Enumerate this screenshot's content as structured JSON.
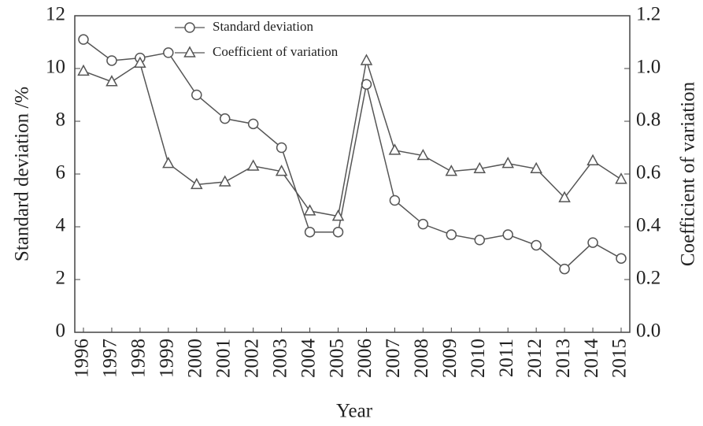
{
  "chart_data": {
    "type": "line",
    "categories": [
      "1996",
      "1997",
      "1998",
      "1999",
      "2000",
      "2001",
      "2002",
      "2003",
      "2004",
      "2005",
      "2006",
      "2007",
      "2008",
      "2009",
      "2010",
      "2011",
      "2012",
      "2013",
      "2014",
      "2015"
    ],
    "series": [
      {
        "name": "Standard deviation",
        "color": "#555555",
        "marker": "circle",
        "axis": "y",
        "values": [
          11.1,
          10.3,
          10.4,
          10.6,
          9.0,
          8.1,
          7.9,
          7.0,
          3.8,
          3.8,
          9.4,
          5.0,
          4.1,
          3.7,
          3.5,
          3.7,
          3.3,
          2.4,
          3.4,
          2.8
        ]
      },
      {
        "name": "Coefficient of variation",
        "color": "#555555",
        "marker": "triangle",
        "axis": "y2",
        "values": [
          0.99,
          0.95,
          1.02,
          0.64,
          0.56,
          0.57,
          0.63,
          0.61,
          0.46,
          0.44,
          1.03,
          0.69,
          0.67,
          0.61,
          0.62,
          0.64,
          0.62,
          0.51,
          0.65,
          0.58
        ]
      }
    ],
    "xlabel": "Year",
    "ylabel": "Standard deviation /%",
    "y2label": "Coefficient of variation",
    "ylim": [
      0,
      12
    ],
    "yticks": [
      0,
      2,
      4,
      6,
      8,
      10,
      12
    ],
    "y2lim": [
      0,
      1.2
    ],
    "y2ticks": [
      {
        "value": 0,
        "label": "0.0"
      },
      0.2,
      0.4,
      0.6,
      0.8,
      {
        "value": 1,
        "label": "1.0"
      },
      1.2
    ],
    "legend": "upper center",
    "grid": false
  }
}
